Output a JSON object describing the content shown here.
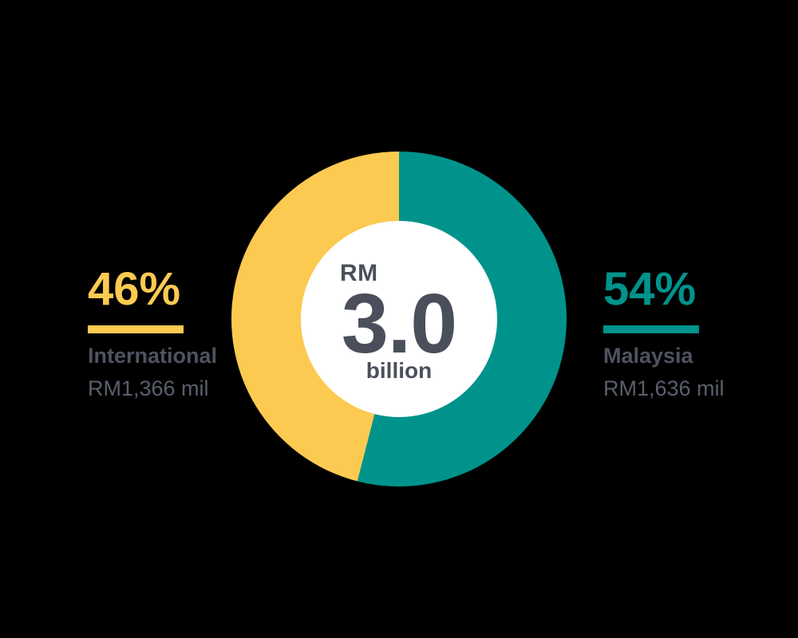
{
  "colors": {
    "background": "#000000",
    "hole": "#FFFFFF",
    "yellow": "#FCCA51",
    "teal": "#00938C",
    "center_text": "#4A4F5B",
    "label_text": "#4E535F",
    "value_text": "#5A5F6B"
  },
  "center": {
    "currency": "RM",
    "amount": "3.0",
    "unit": "billion"
  },
  "legends": {
    "international": {
      "percent": "46%",
      "label": "International",
      "value": "RM1,366 mil"
    },
    "malaysia": {
      "percent": "54%",
      "label": "Malaysia",
      "value": "RM1,636 mil"
    }
  },
  "chart_data": {
    "type": "pie",
    "subtype": "donut",
    "title": "RM 3.0 billion",
    "categories": [
      "Malaysia",
      "International"
    ],
    "values": [
      54,
      46
    ],
    "amounts_mil_rm": [
      1636,
      1366
    ],
    "amount_labels": [
      "RM1,636 mil",
      "RM1,366 mil"
    ],
    "colors": [
      "#00938C",
      "#FCCA51"
    ],
    "center_label": {
      "currency": "RM",
      "amount": "3.0",
      "unit": "billion"
    },
    "start_angle_deg": 0,
    "direction": "clockwise",
    "legend_position": "sides",
    "hole_ratio": 0.59
  }
}
